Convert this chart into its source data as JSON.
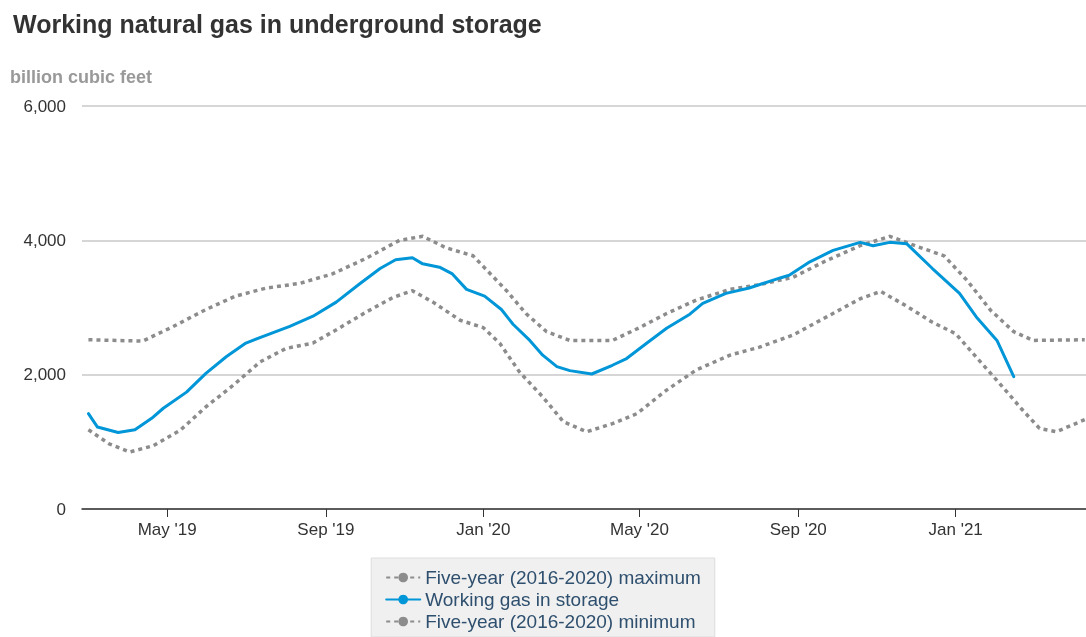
{
  "chart_data": {
    "type": "line",
    "title": "Working natural gas in underground storage",
    "ylabel": "billion cubic feet",
    "xlim": [
      "2019-02-24",
      "2021-04-12"
    ],
    "xticks": [
      {
        "value": "2019-05-01",
        "label": "May '19"
      },
      {
        "value": "2019-09-01",
        "label": "Sep '19"
      },
      {
        "value": "2020-01-01",
        "label": "Jan '20"
      },
      {
        "value": "2020-05-01",
        "label": "May '20"
      },
      {
        "value": "2020-09-01",
        "label": "Sep '20"
      },
      {
        "value": "2021-01-01",
        "label": "Jan '21"
      }
    ],
    "ylim": [
      0,
      6000
    ],
    "yticks": [
      0,
      {
        "value": 2000,
        "label": "2,000"
      },
      {
        "value": 4000,
        "label": "4,000"
      },
      {
        "value": 6000,
        "label": "6,000"
      }
    ],
    "grid": "y",
    "legend": "bottom",
    "marker": "none",
    "series": [
      {
        "name": "Five-year (2016-2020) maximum",
        "color": "#8c8c8c",
        "line_style": "dotted",
        "x": [
          "2019-03-01",
          "2019-04-12",
          "2019-05-05",
          "2019-05-31",
          "2019-06-23",
          "2019-07-17",
          "2019-08-12",
          "2019-09-06",
          "2019-10-02",
          "2019-10-28",
          "2019-11-15",
          "2019-12-03",
          "2019-12-24",
          "2020-01-11",
          "2020-01-19",
          "2020-02-03",
          "2020-02-19",
          "2020-03-08",
          "2020-04-10",
          "2020-05-01",
          "2020-05-22",
          "2020-06-14",
          "2020-07-10",
          "2020-08-02",
          "2020-08-28",
          "2020-09-23",
          "2020-10-19",
          "2020-11-11",
          "2020-12-02",
          "2020-12-23",
          "2021-01-10",
          "2021-01-28",
          "2021-02-15",
          "2021-03-02",
          "2021-04-11"
        ],
        "values": [
          2520,
          2500,
          2710,
          2970,
          3170,
          3290,
          3360,
          3500,
          3730,
          4000,
          4060,
          3890,
          3770,
          3410,
          3250,
          2910,
          2640,
          2510,
          2510,
          2700,
          2910,
          3110,
          3270,
          3340,
          3450,
          3700,
          3920,
          4060,
          3910,
          3770,
          3400,
          2960,
          2640,
          2510,
          2520
        ]
      },
      {
        "name": "Working gas in storage",
        "color": "#0096d7",
        "line_style": "solid",
        "x": [
          "2019-03-01",
          "2019-03-08",
          "2019-03-24",
          "2019-04-06",
          "2019-04-19",
          "2019-04-28",
          "2019-05-16",
          "2019-05-31",
          "2019-06-16",
          "2019-07-01",
          "2019-07-17",
          "2019-08-04",
          "2019-08-22",
          "2019-09-09",
          "2019-09-27",
          "2019-10-13",
          "2019-10-25",
          "2019-11-07",
          "2019-11-15",
          "2019-11-28",
          "2019-12-08",
          "2019-12-19",
          "2020-01-02",
          "2020-01-15",
          "2020-01-24",
          "2020-02-06",
          "2020-02-16",
          "2020-02-27",
          "2020-03-08",
          "2020-03-25",
          "2020-04-10",
          "2020-04-21",
          "2020-05-06",
          "2020-05-22",
          "2020-06-09",
          "2020-06-19",
          "2020-07-07",
          "2020-07-25",
          "2020-08-18",
          "2020-08-25",
          "2020-09-10",
          "2020-09-28",
          "2020-10-19",
          "2020-10-29",
          "2020-11-11",
          "2020-11-24",
          "2020-12-14",
          "2021-01-04",
          "2021-01-17",
          "2021-02-02",
          "2021-02-15"
        ],
        "values": [
          1420,
          1220,
          1140,
          1180,
          1350,
          1500,
          1740,
          2020,
          2270,
          2470,
          2590,
          2720,
          2870,
          3080,
          3350,
          3580,
          3710,
          3740,
          3650,
          3600,
          3500,
          3270,
          3170,
          2970,
          2750,
          2510,
          2290,
          2120,
          2060,
          2010,
          2140,
          2240,
          2460,
          2690,
          2900,
          3060,
          3210,
          3290,
          3440,
          3480,
          3680,
          3850,
          3970,
          3920,
          3970,
          3950,
          3580,
          3210,
          2860,
          2510,
          1970
        ]
      },
      {
        "name": "Five-year (2016-2020) minimum",
        "color": "#8c8c8c",
        "line_style": "dotted",
        "x": [
          "2019-03-01",
          "2019-03-17",
          "2019-04-02",
          "2019-04-20",
          "2019-05-11",
          "2019-05-31",
          "2019-06-21",
          "2019-07-12",
          "2019-08-01",
          "2019-08-22",
          "2019-09-11",
          "2019-10-02",
          "2019-10-23",
          "2019-11-07",
          "2019-11-23",
          "2019-12-14",
          "2020-01-01",
          "2020-01-14",
          "2020-01-29",
          "2020-02-16",
          "2020-03-03",
          "2020-03-21",
          "2020-04-10",
          "2020-04-29",
          "2020-05-22",
          "2020-06-14",
          "2020-07-10",
          "2020-08-02",
          "2020-08-28",
          "2020-09-23",
          "2020-10-19",
          "2020-11-04",
          "2020-11-24",
          "2020-12-14",
          "2021-01-01",
          "2021-01-17",
          "2021-02-04",
          "2021-02-22",
          "2021-03-07",
          "2021-03-20",
          "2021-04-11"
        ],
        "values": [
          1180,
          970,
          850,
          940,
          1170,
          1520,
          1840,
          2190,
          2390,
          2470,
          2690,
          2930,
          3150,
          3250,
          3080,
          2810,
          2700,
          2460,
          2040,
          1670,
          1300,
          1150,
          1270,
          1420,
          1770,
          2070,
          2290,
          2410,
          2590,
          2860,
          3130,
          3240,
          3020,
          2780,
          2610,
          2260,
          1870,
          1470,
          1200,
          1150,
          1330
        ]
      }
    ]
  }
}
